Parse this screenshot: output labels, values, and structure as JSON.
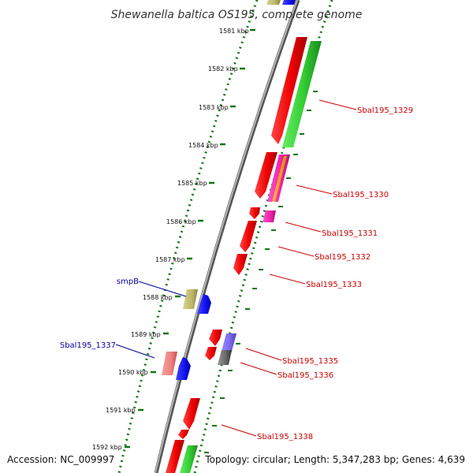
{
  "title": "Shewanella baltica OS195, complete genome",
  "footer": {
    "accession": "Accession: NC_009997",
    "summary": "Topology: circular; Length: 5,347,283 bp; Genes: 4,639"
  },
  "ruler_labels": [
    "1581 kbp",
    "1582 kbp",
    "1583 kbp",
    "1584 kbp",
    "1585 kbp",
    "1586 kbp",
    "1587 kbp",
    "1588 kbp",
    "1589 kbp",
    "1590 kbp",
    "1591 kbp",
    "1592 kbp"
  ],
  "gene_labels": [
    {
      "text": "Sbal195_1329",
      "color": "#cc0000"
    },
    {
      "text": "Sbal195_1330",
      "color": "#cc0000"
    },
    {
      "text": "Sbal195_1331",
      "color": "#cc0000"
    },
    {
      "text": "Sbal195_1332",
      "color": "#cc0000"
    },
    {
      "text": "Sbal195_1333",
      "color": "#cc0000"
    },
    {
      "text": "Sbal195_1335",
      "color": "#cc0000"
    },
    {
      "text": "Sbal195_1336",
      "color": "#cc0000"
    },
    {
      "text": "Sbal195_1338",
      "color": "#cc0000"
    },
    {
      "text": "smpB",
      "color": "#000099"
    },
    {
      "text": "Sbal195_1337",
      "color": "#000099"
    }
  ],
  "colors": {
    "backbone": "#7f7f7f",
    "dotted_guide": "#117711",
    "gene_red": "#ee0000",
    "gene_green": "#33cc33",
    "gene_blue": "#1111ee",
    "gene_khaki": "#bdb76b",
    "gene_pink": "#f08080",
    "gene_magenta": "#ee22aa",
    "gene_slate": "#7b68ee",
    "gene_gray": "#666666"
  }
}
